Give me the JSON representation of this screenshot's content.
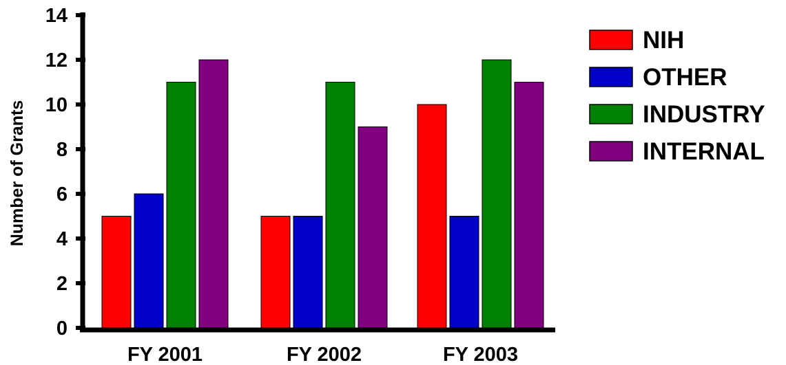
{
  "chart_data": {
    "type": "bar",
    "title": "",
    "xlabel": "",
    "ylabel": "Number of Grants",
    "categories": [
      "FY 2001",
      "FY 2002",
      "FY 2003"
    ],
    "ylim": [
      0,
      14
    ],
    "yticks": [
      0,
      2,
      4,
      6,
      8,
      10,
      12,
      14
    ],
    "grid": false,
    "legend_position": "right",
    "series": [
      {
        "name": "NIH",
        "color": "#ff0000",
        "values": [
          5,
          5,
          10
        ]
      },
      {
        "name": "OTHER",
        "color": "#0000c8",
        "values": [
          6,
          5,
          5
        ]
      },
      {
        "name": "INDUSTRY",
        "color": "#008000",
        "values": [
          11,
          11,
          12
        ]
      },
      {
        "name": "INTERNAL",
        "color": "#800080",
        "values": [
          12,
          9,
          11
        ]
      }
    ]
  }
}
